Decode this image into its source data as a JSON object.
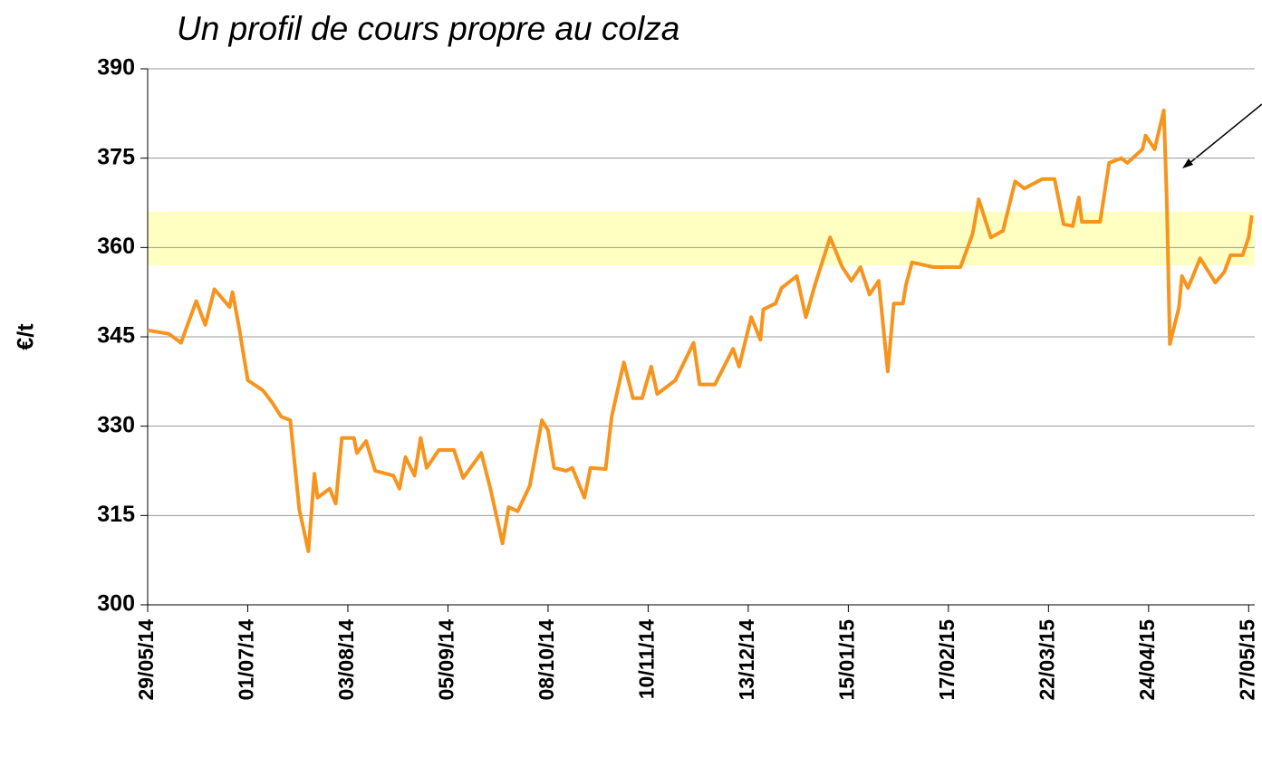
{
  "chart_data": {
    "type": "line",
    "title": "Un profil de cours propre au colza",
    "y_label": "€/t",
    "x": [
      "2014-05-29",
      "2014-06-05",
      "2014-06-09",
      "2014-06-14",
      "2014-06-17",
      "2014-06-20",
      "2014-06-25",
      "2014-06-26",
      "2014-06-28",
      "2014-07-01",
      "2014-07-06",
      "2014-07-09",
      "2014-07-12",
      "2014-07-15",
      "2014-07-18",
      "2014-07-21",
      "2014-07-23",
      "2014-07-24",
      "2014-07-28",
      "2014-07-30",
      "2014-08-01",
      "2014-08-05",
      "2014-08-06",
      "2014-08-09",
      "2014-08-12",
      "2014-08-18",
      "2014-08-20",
      "2014-08-22",
      "2014-08-25",
      "2014-08-27",
      "2014-08-29",
      "2014-09-02",
      "2014-09-07",
      "2014-09-10",
      "2014-09-16",
      "2014-09-19",
      "2014-09-23",
      "2014-09-25",
      "2014-09-28",
      "2014-10-02",
      "2014-10-06",
      "2014-10-08",
      "2014-10-10",
      "2014-10-14",
      "2014-10-16",
      "2014-10-20",
      "2014-10-22",
      "2014-10-27",
      "2014-10-29",
      "2014-11-02",
      "2014-11-05",
      "2014-11-08",
      "2014-11-11",
      "2014-11-13",
      "2014-11-19",
      "2014-11-25",
      "2014-11-27",
      "2014-12-02",
      "2014-12-08",
      "2014-12-10",
      "2014-12-14",
      "2014-12-17",
      "2014-12-18",
      "2014-12-22",
      "2014-12-24",
      "2014-12-29",
      "2015-01-01",
      "2015-01-04",
      "2015-01-09",
      "2015-01-13",
      "2015-01-16",
      "2015-01-19",
      "2015-01-22",
      "2015-01-25",
      "2015-01-28",
      "2015-01-30",
      "2015-02-02",
      "2015-02-03",
      "2015-02-05",
      "2015-02-12",
      "2015-02-21",
      "2015-02-25",
      "2015-02-27",
      "2015-03-03",
      "2015-03-07",
      "2015-03-11",
      "2015-03-14",
      "2015-03-20",
      "2015-03-24",
      "2015-03-27",
      "2015-03-30",
      "2015-04-01",
      "2015-04-02",
      "2015-04-08",
      "2015-04-11",
      "2015-04-15",
      "2015-04-17",
      "2015-04-22",
      "2015-04-23",
      "2015-04-26",
      "2015-04-29",
      "2015-04-30",
      "2015-05-01",
      "2015-05-04",
      "2015-05-05",
      "2015-05-07",
      "2015-05-11",
      "2015-05-16",
      "2015-05-19",
      "2015-05-21",
      "2015-05-25",
      "2015-05-27",
      "2015-05-28"
    ],
    "series": [
      {
        "color": "#f7941d",
        "values": [
          346.1,
          345.5,
          344,
          351,
          347,
          353,
          350,
          352.5,
          347,
          337.7,
          336,
          334,
          331.6,
          331,
          316,
          309,
          322,
          318,
          319.5,
          317,
          328,
          328,
          325.5,
          327.5,
          322.5,
          321.7,
          319.5,
          324.8,
          321.7,
          328,
          323,
          326,
          326,
          321.3,
          325.5,
          319.5,
          310.3,
          316.4,
          315.7,
          320,
          331,
          329.3,
          323,
          322.5,
          323,
          318,
          323,
          322.8,
          331.6,
          340.7,
          334.7,
          334.7,
          340,
          335.4,
          337.7,
          344,
          337,
          337,
          343,
          340,
          348.3,
          344.5,
          349.6,
          350.6,
          353.2,
          355.2,
          348.3,
          353.7,
          361.7,
          356.7,
          354.4,
          356.7,
          352.1,
          354.4,
          339.2,
          350.6,
          350.6,
          353.7,
          357.5,
          356.7,
          356.7,
          362.3,
          368.1,
          361.7,
          362.8,
          371.1,
          369.9,
          371.5,
          371.5,
          363.9,
          363.6,
          368.4,
          364.3,
          364.3,
          374.2,
          375,
          374.2,
          376.5,
          378.8,
          376.5,
          383,
          368,
          343.8,
          349.9,
          355.2,
          353.2,
          358.2,
          354.1,
          355.9,
          358.7,
          358.7,
          361.7,
          365.4
        ]
      }
    ],
    "highlight_band": [
      357,
      366
    ],
    "highlight_color": "#ffff99",
    "xlim": [
      "2014-05-29",
      "2015-05-29"
    ],
    "xticks": [
      {
        "value": "2014-05-29",
        "label": "29/05/14"
      },
      {
        "value": "2014-07-01",
        "label": "01/07/14"
      },
      {
        "value": "2014-08-03",
        "label": "03/08/14"
      },
      {
        "value": "2014-09-05",
        "label": "05/09/14"
      },
      {
        "value": "2014-10-08",
        "label": "08/10/14"
      },
      {
        "value": "2014-11-10",
        "label": "10/11/14"
      },
      {
        "value": "2014-12-13",
        "label": "13/12/14"
      },
      {
        "value": "2015-01-15",
        "label": "15/01/15"
      },
      {
        "value": "2015-02-17",
        "label": "17/02/15"
      },
      {
        "value": "2015-03-22",
        "label": "22/03/15"
      },
      {
        "value": "2015-04-24",
        "label": "24/04/15"
      },
      {
        "value": "2015-05-27",
        "label": "27/05/15"
      }
    ],
    "ylim": [
      300,
      390
    ],
    "yticks": [
      300,
      315,
      330,
      345,
      360,
      375,
      390
    ],
    "grid": true
  }
}
